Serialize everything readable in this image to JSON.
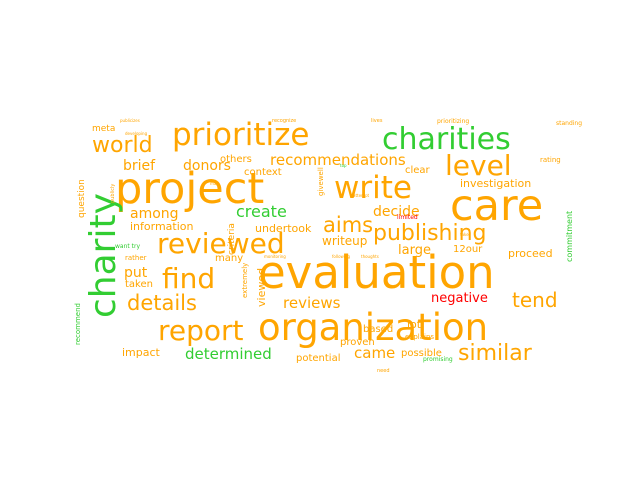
{
  "colors": {
    "orange": "#FFA500",
    "green": "#32CD32",
    "red": "#FF0000",
    "background": "#FFFFFF"
  },
  "words": [
    {
      "text": "evaluation",
      "color": "orange"
    },
    {
      "text": "project",
      "color": "orange"
    },
    {
      "text": "care",
      "color": "orange"
    },
    {
      "text": "organization",
      "color": "orange"
    },
    {
      "text": "charity",
      "color": "green"
    },
    {
      "text": "prioritize",
      "color": "orange"
    },
    {
      "text": "charities",
      "color": "green"
    },
    {
      "text": "reviewed",
      "color": "orange"
    },
    {
      "text": "write",
      "color": "orange"
    },
    {
      "text": "report",
      "color": "orange"
    },
    {
      "text": "find",
      "color": "orange"
    },
    {
      "text": "level",
      "color": "orange"
    },
    {
      "text": "world",
      "color": "orange"
    },
    {
      "text": "publishing",
      "color": "orange"
    },
    {
      "text": "details",
      "color": "orange"
    },
    {
      "text": "similar",
      "color": "orange"
    },
    {
      "text": "aims",
      "color": "orange"
    },
    {
      "text": "recommendations",
      "color": "orange"
    },
    {
      "text": "tend",
      "color": "orange"
    },
    {
      "text": "reviews",
      "color": "orange"
    },
    {
      "text": "determined",
      "color": "green"
    },
    {
      "text": "brief",
      "color": "orange"
    },
    {
      "text": "donors",
      "color": "orange"
    },
    {
      "text": "create",
      "color": "green"
    },
    {
      "text": "among",
      "color": "orange"
    },
    {
      "text": "decide",
      "color": "orange"
    },
    {
      "text": "came",
      "color": "orange"
    },
    {
      "text": "negative",
      "color": "red"
    },
    {
      "text": "large",
      "color": "orange"
    },
    {
      "text": "put",
      "color": "orange"
    },
    {
      "text": "writeup",
      "color": "orange"
    },
    {
      "text": "undertook",
      "color": "orange"
    },
    {
      "text": "others",
      "color": "orange"
    },
    {
      "text": "context",
      "color": "orange"
    },
    {
      "text": "information",
      "color": "orange"
    },
    {
      "text": "investigation",
      "color": "orange"
    },
    {
      "text": "proceed",
      "color": "orange"
    },
    {
      "text": "potential",
      "color": "orange"
    },
    {
      "text": "impact",
      "color": "orange"
    },
    {
      "text": "possible",
      "color": "orange"
    },
    {
      "text": "based",
      "color": "orange"
    },
    {
      "text": "lot",
      "color": "orange"
    },
    {
      "text": "taken",
      "color": "orange"
    },
    {
      "text": "viewed",
      "color": "orange"
    },
    {
      "text": "question",
      "color": "orange"
    },
    {
      "text": "meta",
      "color": "orange"
    },
    {
      "text": "criteria",
      "color": "orange"
    },
    {
      "text": "commitment",
      "color": "green"
    },
    {
      "text": "recommend",
      "color": "green"
    },
    {
      "text": "extremely",
      "color": "orange"
    },
    {
      "text": "proven",
      "color": "orange"
    },
    {
      "text": "clear",
      "color": "orange"
    },
    {
      "text": "many",
      "color": "orange"
    },
    {
      "text": "rather",
      "color": "orange"
    },
    {
      "text": "want try",
      "color": "green"
    },
    {
      "text": "12our",
      "color": "orange"
    },
    {
      "text": "explains",
      "color": "orange"
    },
    {
      "text": "promising",
      "color": "green"
    },
    {
      "text": "limited",
      "color": "red"
    },
    {
      "text": "rating",
      "color": "orange"
    },
    {
      "text": "standing",
      "color": "orange"
    },
    {
      "text": "prioritizing",
      "color": "orange"
    },
    {
      "text": "lives",
      "color": "orange"
    },
    {
      "text": "recognize",
      "color": "orange"
    },
    {
      "text": "publicizes",
      "color": "orange"
    },
    {
      "text": "publicly",
      "color": "orange"
    },
    {
      "text": "developing",
      "color": "orange"
    },
    {
      "text": "givewell",
      "color": "orange"
    },
    {
      "text": "monitoring",
      "color": "orange"
    },
    {
      "text": "following",
      "color": "orange"
    },
    {
      "text": "thoughts",
      "color": "orange"
    },
    {
      "text": "need",
      "color": "orange"
    },
    {
      "text": "attempt",
      "color": "orange"
    },
    {
      "text": "top",
      "color": "green"
    },
    {
      "text": "may",
      "color": "orange"
    },
    {
      "text": "take",
      "color": "orange"
    }
  ]
}
